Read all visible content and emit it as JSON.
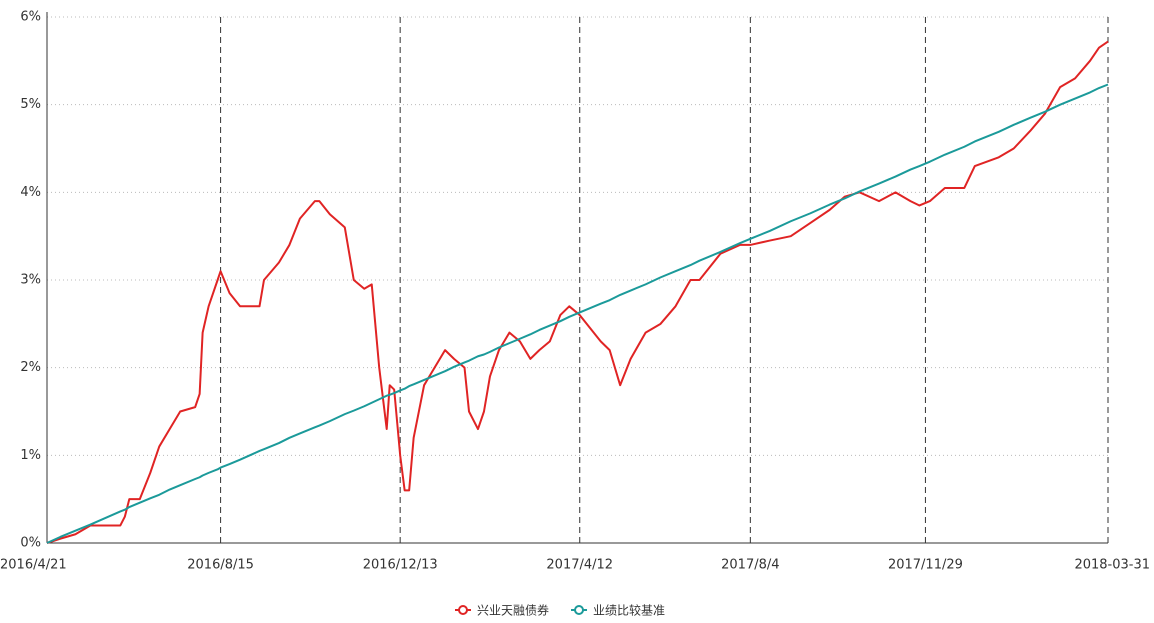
{
  "chart_data": {
    "type": "line",
    "x": [
      "2016-04-21",
      "2016-04-30",
      "2016-05-10",
      "2016-05-20",
      "2016-06-09",
      "2016-06-12",
      "2016-06-15",
      "2016-06-22",
      "2016-06-29",
      "2016-07-05",
      "2016-07-12",
      "2016-07-19",
      "2016-07-29",
      "2016-08-01",
      "2016-08-03",
      "2016-08-07",
      "2016-08-13",
      "2016-08-15",
      "2016-08-21",
      "2016-08-28",
      "2016-09-10",
      "2016-09-13",
      "2016-09-23",
      "2016-09-30",
      "2016-10-07",
      "2016-10-17",
      "2016-10-20",
      "2016-10-27",
      "2016-11-06",
      "2016-11-12",
      "2016-11-19",
      "2016-11-24",
      "2016-11-29",
      "2016-12-04",
      "2016-12-06",
      "2016-12-09",
      "2016-12-13",
      "2016-12-16",
      "2016-12-19",
      "2016-12-22",
      "2016-12-29",
      "2017-01-05",
      "2017-01-12",
      "2017-01-18",
      "2017-01-25",
      "2017-01-28",
      "2017-02-03",
      "2017-02-07",
      "2017-02-11",
      "2017-02-17",
      "2017-02-24",
      "2017-03-03",
      "2017-03-10",
      "2017-03-16",
      "2017-03-23",
      "2017-03-30",
      "2017-04-05",
      "2017-04-12",
      "2017-04-19",
      "2017-04-26",
      "2017-05-02",
      "2017-05-09",
      "2017-05-16",
      "2017-05-26",
      "2017-06-05",
      "2017-06-15",
      "2017-06-25",
      "2017-07-01",
      "2017-07-15",
      "2017-07-28",
      "2017-08-04",
      "2017-08-17",
      "2017-08-31",
      "2017-09-13",
      "2017-09-26",
      "2017-10-06",
      "2017-10-16",
      "2017-10-29",
      "2017-11-09",
      "2017-11-19",
      "2017-11-25",
      "2017-12-02",
      "2017-12-12",
      "2017-12-25",
      "2018-01-01",
      "2018-01-17",
      "2018-01-27",
      "2018-02-07",
      "2018-02-17",
      "2018-02-27",
      "2018-03-09",
      "2018-03-19",
      "2018-03-25",
      "2018-03-31"
    ],
    "series": [
      {
        "name": "兴业天融债券",
        "color": "#e02424",
        "values": [
          0,
          0.05,
          0.1,
          0.2,
          0.2,
          0.3,
          0.5,
          0.5,
          0.8,
          1.1,
          1.3,
          1.5,
          1.55,
          1.7,
          2.4,
          2.7,
          3.0,
          3.1,
          2.85,
          2.7,
          2.7,
          3.0,
          3.2,
          3.4,
          3.7,
          3.9,
          3.9,
          3.75,
          3.6,
          3.0,
          2.9,
          2.95,
          2.0,
          1.3,
          1.8,
          1.75,
          1.0,
          0.6,
          0.6,
          1.2,
          1.8,
          2.0,
          2.2,
          2.1,
          2.0,
          1.5,
          1.3,
          1.5,
          1.9,
          2.2,
          2.4,
          2.3,
          2.1,
          2.2,
          2.3,
          2.6,
          2.7,
          2.6,
          2.45,
          2.3,
          2.2,
          1.8,
          2.1,
          2.4,
          2.5,
          2.7,
          3.0,
          3.0,
          3.3,
          3.4,
          3.4,
          3.45,
          3.5,
          3.65,
          3.8,
          3.95,
          4.0,
          3.9,
          4.0,
          3.9,
          3.85,
          3.9,
          4.05,
          4.05,
          4.3,
          4.4,
          4.5,
          4.7,
          4.9,
          5.2,
          5.3,
          5.5,
          5.65,
          5.72
        ]
      },
      {
        "name": "业绩比较基准",
        "color": "#1b9a9a",
        "values": [
          0,
          0.07,
          0.14,
          0.21,
          0.36,
          0.38,
          0.41,
          0.46,
          0.51,
          0.55,
          0.61,
          0.66,
          0.73,
          0.75,
          0.77,
          0.8,
          0.84,
          0.86,
          0.9,
          0.95,
          1.05,
          1.07,
          1.14,
          1.2,
          1.25,
          1.32,
          1.34,
          1.39,
          1.47,
          1.51,
          1.56,
          1.6,
          1.64,
          1.68,
          1.69,
          1.71,
          1.74,
          1.76,
          1.79,
          1.81,
          1.86,
          1.91,
          1.96,
          2.01,
          2.06,
          2.08,
          2.13,
          2.15,
          2.18,
          2.23,
          2.28,
          2.33,
          2.38,
          2.43,
          2.48,
          2.53,
          2.58,
          2.63,
          2.68,
          2.73,
          2.77,
          2.83,
          2.88,
          2.95,
          3.03,
          3.1,
          3.17,
          3.22,
          3.32,
          3.42,
          3.47,
          3.56,
          3.67,
          3.76,
          3.86,
          3.93,
          4.01,
          4.1,
          4.18,
          4.26,
          4.3,
          4.35,
          4.43,
          4.52,
          4.58,
          4.69,
          4.77,
          4.85,
          4.92,
          5.0,
          5.07,
          5.14,
          5.19,
          5.23
        ]
      }
    ],
    "xlim": [
      "2016-04-21",
      "2018-03-31"
    ],
    "xticks": [
      {
        "value": "2016-04-21",
        "label": "2016/4/21"
      },
      {
        "value": "2016-08-15",
        "label": "2016/8/15"
      },
      {
        "value": "2016-12-13",
        "label": "2016/12/13"
      },
      {
        "value": "2017-04-12",
        "label": "2017/4/12"
      },
      {
        "value": "2017-08-04",
        "label": "2017/8/4"
      },
      {
        "value": "2017-11-29",
        "label": "2017/11/29"
      },
      "2018-03-31"
    ],
    "ylim": [
      0,
      6
    ],
    "yticks": [
      {
        "value": 0,
        "label": "0%"
      },
      {
        "value": 1,
        "label": "1%"
      },
      {
        "value": 2,
        "label": "2%"
      },
      {
        "value": 3,
        "label": "3%"
      },
      {
        "value": 4,
        "label": "4%"
      },
      {
        "value": 5,
        "label": "5%"
      },
      {
        "value": 6,
        "label": "6%"
      }
    ],
    "grid": true,
    "legend": "bottom"
  }
}
